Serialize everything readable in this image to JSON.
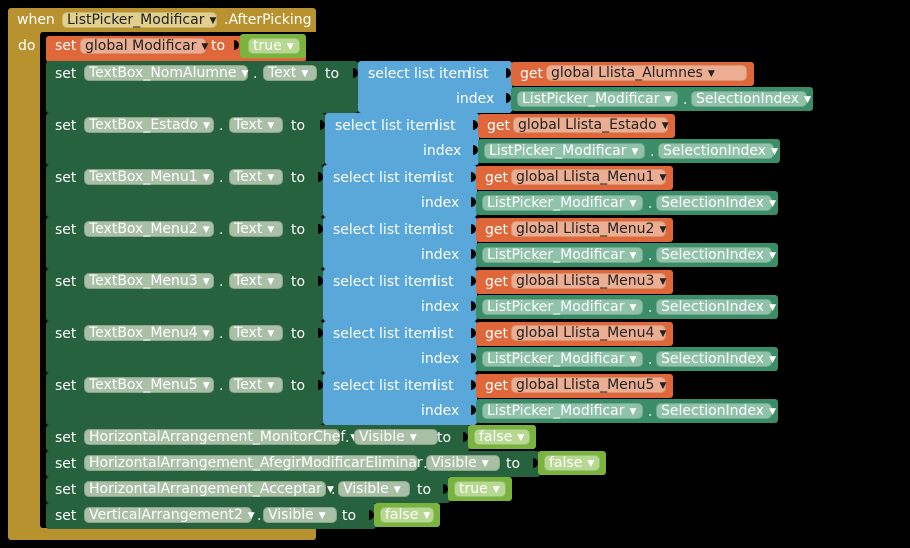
{
  "event": {
    "when": "when",
    "component": "ListPicker_Modificar",
    "event_name": ".AfterPicking",
    "do": "do"
  },
  "kw": {
    "set": "set",
    "to": "to",
    "get": "get",
    "dot": ".",
    "select_list_item": "select list item",
    "list": "list",
    "index": "index"
  },
  "set_global": {
    "var": "global Modificar",
    "value": "true"
  },
  "textbox_rows": [
    {
      "component": "TextBox_NomAlumne",
      "prop": "Text",
      "list_var": "global Llista_Alumnes",
      "picker": "ListPicker_Modificar",
      "picker_prop": "SelectionIndex"
    },
    {
      "component": "TextBox_Estado",
      "prop": "Text",
      "list_var": "global Llista_Estado",
      "picker": "ListPicker_Modificar",
      "picker_prop": "SelectionIndex"
    },
    {
      "component": "TextBox_Menu1",
      "prop": "Text",
      "list_var": "global Llista_Menu1",
      "picker": "ListPicker_Modificar",
      "picker_prop": "SelectionIndex"
    },
    {
      "component": "TextBox_Menu2",
      "prop": "Text",
      "list_var": "global Llista_Menu2",
      "picker": "ListPicker_Modificar",
      "picker_prop": "SelectionIndex"
    },
    {
      "component": "TextBox_Menu3",
      "prop": "Text",
      "list_var": "global Llista_Menu3",
      "picker": "ListPicker_Modificar",
      "picker_prop": "SelectionIndex"
    },
    {
      "component": "TextBox_Menu4",
      "prop": "Text",
      "list_var": "global Llista_Menu4",
      "picker": "ListPicker_Modificar",
      "picker_prop": "SelectionIndex"
    },
    {
      "component": "TextBox_Menu5",
      "prop": "Text",
      "list_var": "global Llista_Menu5",
      "picker": "ListPicker_Modificar",
      "picker_prop": "SelectionIndex"
    }
  ],
  "visible_rows": [
    {
      "component": "HorizontalArrangement_MonitorChef",
      "prop": "Visible",
      "value": "false"
    },
    {
      "component": "HorizontalArrangement_AfegirModificarEliminar",
      "prop": "Visible",
      "value": "false"
    },
    {
      "component": "HorizontalArrangement_Acceptar",
      "prop": "Visible",
      "value": "true"
    },
    {
      "component": "VerticalArrangement2",
      "prop": "Visible",
      "value": "false"
    }
  ],
  "colors": {
    "event_block": "#b8922e",
    "variable_set": "#e0673a",
    "component_set": "#26623d",
    "list_block": "#5aa7d9",
    "getter": "#e0673a",
    "component_get": "#3a8d66",
    "logic": "#7ab33e"
  }
}
